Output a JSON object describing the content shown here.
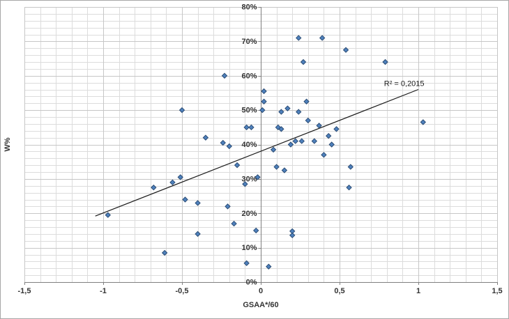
{
  "figure": {
    "background": "#ffffff",
    "border_color": "#a6a6a6"
  },
  "chart_data": {
    "type": "scatter",
    "title": "",
    "xlabel": "GSAA*/60",
    "ylabel": "W%",
    "xlim": [
      -1.5,
      1.5
    ],
    "ylim": [
      0,
      80
    ],
    "x_major_step": 0.5,
    "x_minor_step": 0.1,
    "y_major_step": 10,
    "y_minor_step": 2,
    "x_tick_labels": [
      "-1,5",
      "-1",
      "-0,5",
      "0",
      "0,5",
      "1",
      "1,5"
    ],
    "y_tick_labels": [
      "0%",
      "10%",
      "20%",
      "30%",
      "40%",
      "50%",
      "60%",
      "70%",
      "80%"
    ],
    "y_axis_cross_x": 0,
    "grid": true,
    "grid_colors": {
      "minor": "#dcdcdc",
      "major": "#c6c6c6",
      "axis": "#7f7f7f"
    },
    "marker": {
      "shape": "diamond",
      "fill": "#4f81bd",
      "stroke": "#2c4d75",
      "size": 7
    },
    "points": [
      [
        -0.97,
        19.5
      ],
      [
        -0.68,
        27.5
      ],
      [
        -0.61,
        8.5
      ],
      [
        -0.56,
        29
      ],
      [
        -0.51,
        30.5
      ],
      [
        -0.5,
        50
      ],
      [
        -0.48,
        24
      ],
      [
        -0.4,
        23
      ],
      [
        -0.4,
        14
      ],
      [
        -0.35,
        42
      ],
      [
        -0.24,
        40.5
      ],
      [
        -0.23,
        60
      ],
      [
        -0.21,
        22
      ],
      [
        -0.2,
        39.5
      ],
      [
        -0.17,
        17
      ],
      [
        -0.15,
        34
      ],
      [
        -0.1,
        28.5
      ],
      [
        -0.09,
        45
      ],
      [
        -0.09,
        5.5
      ],
      [
        -0.06,
        45
      ],
      [
        -0.03,
        15
      ],
      [
        -0.02,
        30.5
      ],
      [
        0.01,
        50
      ],
      [
        0.02,
        55.5
      ],
      [
        0.02,
        52.5
      ],
      [
        0.05,
        4.5
      ],
      [
        0.08,
        38.5
      ],
      [
        0.1,
        33.5
      ],
      [
        0.11,
        45
      ],
      [
        0.13,
        49.5
      ],
      [
        0.13,
        44.5
      ],
      [
        0.15,
        32.5
      ],
      [
        0.17,
        50.5
      ],
      [
        0.19,
        40
      ],
      [
        0.2,
        14.8
      ],
      [
        0.2,
        13.6
      ],
      [
        0.22,
        41
      ],
      [
        0.24,
        71
      ],
      [
        0.24,
        49.5
      ],
      [
        0.26,
        41
      ],
      [
        0.27,
        64
      ],
      [
        0.29,
        52.5
      ],
      [
        0.3,
        47
      ],
      [
        0.34,
        41
      ],
      [
        0.37,
        45.5
      ],
      [
        0.39,
        71
      ],
      [
        0.4,
        37
      ],
      [
        0.43,
        42.5
      ],
      [
        0.45,
        40
      ],
      [
        0.48,
        44.5
      ],
      [
        0.54,
        67.5
      ],
      [
        0.56,
        27.5
      ],
      [
        0.57,
        33.5
      ],
      [
        0.79,
        64
      ],
      [
        1.03,
        46.5
      ]
    ],
    "trendline": {
      "x1": -1.05,
      "y1": 19.2,
      "x2": 1.0,
      "y2": 56.0,
      "color": "#1a1a1a",
      "label": "R² = 0,2015",
      "label_x": 0.91,
      "label_y": 57.0
    }
  }
}
